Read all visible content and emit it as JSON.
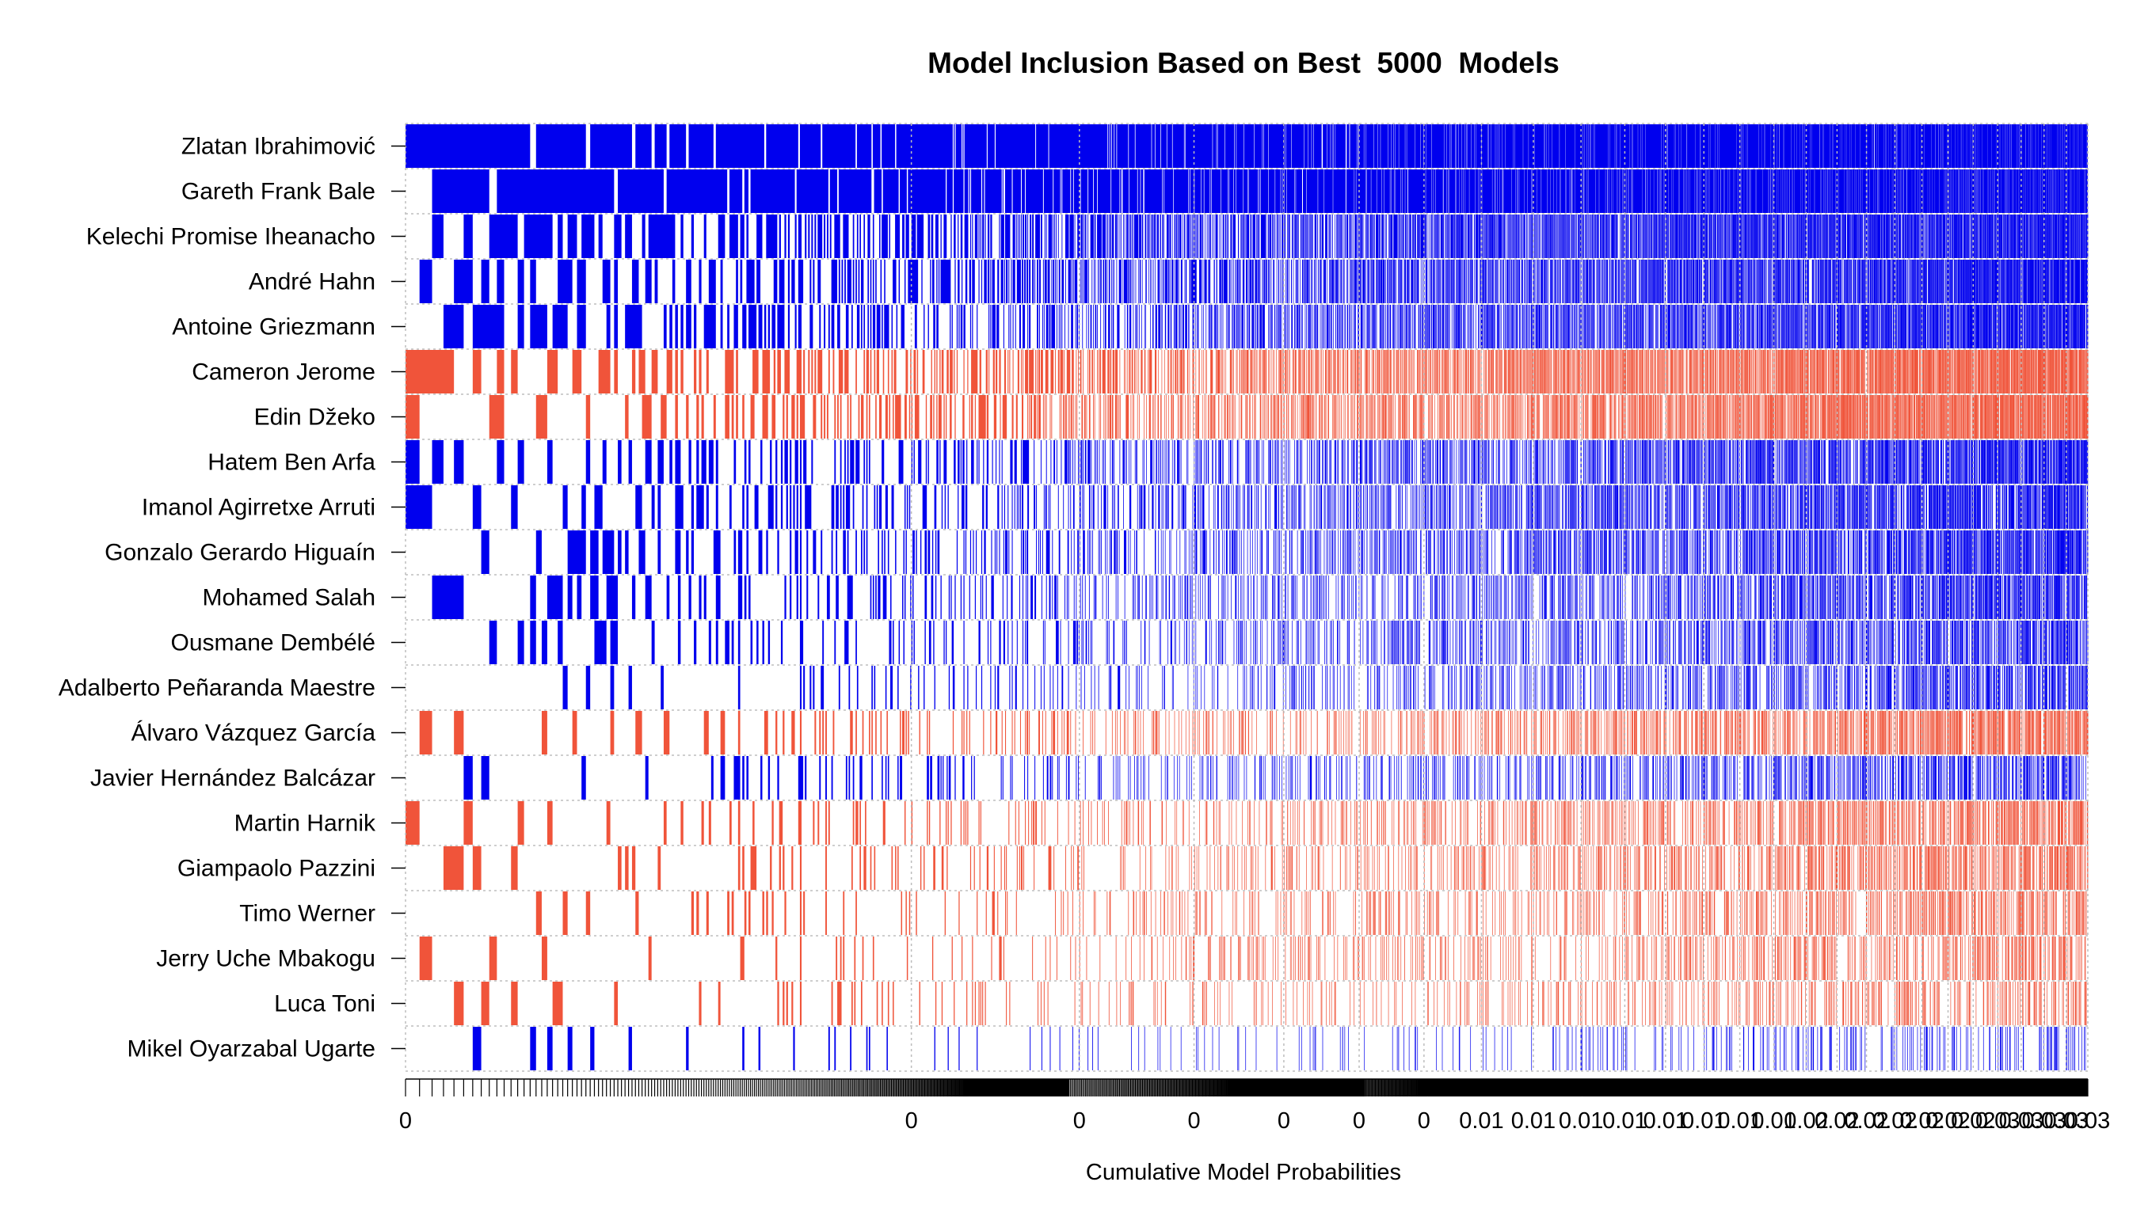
{
  "chart_data": {
    "type": "heatmap",
    "title": "Model Inclusion Based on Best  5000  Models",
    "xlabel": "Cumulative Model Probabilities",
    "ylabel": "",
    "x_tick_labels": [
      "0",
      "0",
      "0",
      "0",
      "0",
      "0",
      "0",
      "0.01",
      "0.01",
      "0.01",
      "0.01",
      "0.01",
      "0.01",
      "0.01",
      "0.01",
      "0.02",
      "0.02",
      "0.02",
      "0.02",
      "0.02",
      "0.02",
      "0.02",
      "0.03",
      "0.03",
      "0.03",
      "0.03",
      "0.03"
    ],
    "xlim": [
      0,
      0.03
    ],
    "n_models": 5000,
    "grid": true,
    "legend": "none",
    "colors": {
      "positive": "#0000ee",
      "negative": "#f0543a",
      "grid": "#bdbdbd",
      "axis": "#000000"
    },
    "variables": [
      {
        "name": "Zlatan Ibrahimović",
        "sign": "positive",
        "inclusion_share": 0.93
      },
      {
        "name": "Gareth Frank Bale",
        "sign": "positive",
        "inclusion_share": 0.9
      },
      {
        "name": "Kelechi Promise Iheanacho",
        "sign": "positive",
        "inclusion_share": 0.56
      },
      {
        "name": "André Hahn",
        "sign": "positive",
        "inclusion_share": 0.5
      },
      {
        "name": "Antoine Griezmann",
        "sign": "positive",
        "inclusion_share": 0.42
      },
      {
        "name": "Cameron Jerome",
        "sign": "negative",
        "inclusion_share": 0.45
      },
      {
        "name": "Edin Džeko",
        "sign": "negative",
        "inclusion_share": 0.38
      },
      {
        "name": "Hatem Ben Arfa",
        "sign": "positive",
        "inclusion_share": 0.32
      },
      {
        "name": "Imanol Agirretxe Arruti",
        "sign": "positive",
        "inclusion_share": 0.3
      },
      {
        "name": "Gonzalo Gerardo Higuaín",
        "sign": "positive",
        "inclusion_share": 0.26
      },
      {
        "name": "Mohamed Salah",
        "sign": "positive",
        "inclusion_share": 0.23
      },
      {
        "name": "Ousmane Dembélé",
        "sign": "positive",
        "inclusion_share": 0.2
      },
      {
        "name": "Adalberto Peñaranda Maestre",
        "sign": "positive",
        "inclusion_share": 0.17
      },
      {
        "name": "Álvaro Vázquez García",
        "sign": "negative",
        "inclusion_share": 0.2
      },
      {
        "name": "Javier Hernández Balcázar",
        "sign": "positive",
        "inclusion_share": 0.16
      },
      {
        "name": "Martin Harnik",
        "sign": "negative",
        "inclusion_share": 0.17
      },
      {
        "name": "Giampaolo Pazzini",
        "sign": "negative",
        "inclusion_share": 0.15
      },
      {
        "name": "Timo Werner",
        "sign": "negative",
        "inclusion_share": 0.13
      },
      {
        "name": "Jerry Uche Mbakogu",
        "sign": "negative",
        "inclusion_share": 0.12
      },
      {
        "name": "Luca Toni",
        "sign": "negative",
        "inclusion_share": 0.09
      },
      {
        "name": "Mikel Oyarzabal Ugarte",
        "sign": "positive",
        "inclusion_share": 0.06
      }
    ]
  }
}
